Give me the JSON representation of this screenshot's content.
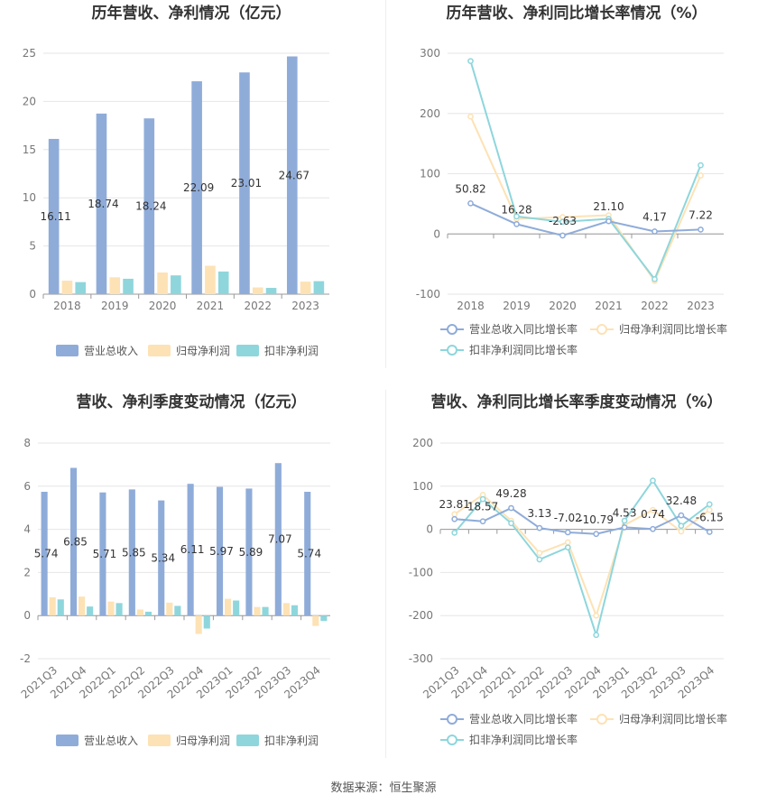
{
  "footer": {
    "source": "数据来源：恒生聚源"
  },
  "colors": {
    "revenue": "#8facd9",
    "net_profit": "#fde2b5",
    "deducted_profit": "#8ed6dc",
    "grid": "#e6e6e6",
    "axis": "#999999"
  },
  "chart_data": [
    {
      "id": "annual-bar",
      "type": "bar",
      "title": "历年营收、净利情况（亿元）",
      "categories": [
        "2018",
        "2019",
        "2020",
        "2021",
        "2022",
        "2023"
      ],
      "ylim": [
        0,
        25
      ],
      "yticks": [
        "0",
        "5",
        "10",
        "15",
        "20",
        "25"
      ],
      "grid": true,
      "legend_position": "bottom",
      "series": [
        {
          "name": "营业总收入",
          "values": [
            16.11,
            18.74,
            18.24,
            22.09,
            23.01,
            24.67
          ],
          "labels": [
            "16.11",
            "18.74",
            "18.24",
            "22.09",
            "23.01",
            "24.67"
          ]
        },
        {
          "name": "归母净利润",
          "values": [
            1.4,
            1.75,
            2.25,
            2.95,
            0.7,
            1.3
          ]
        },
        {
          "name": "扣非净利润",
          "values": [
            1.25,
            1.6,
            1.95,
            2.35,
            0.65,
            1.35
          ]
        }
      ]
    },
    {
      "id": "annual-line",
      "type": "line",
      "title": "历年营收、净利同比增长率情况（%）",
      "categories": [
        "2018",
        "2019",
        "2020",
        "2021",
        "2022",
        "2023"
      ],
      "ylim": [
        -100,
        300
      ],
      "yticks": [
        "-100",
        "0",
        "100",
        "200",
        "300"
      ],
      "grid": true,
      "legend_position": "bottom",
      "series": [
        {
          "name": "营业总收入同比增长率",
          "values": [
            50.82,
            16.28,
            -2.63,
            21.1,
            4.17,
            7.22
          ],
          "labels": [
            "50.82",
            "16.28",
            "-2.63",
            "21.10",
            "4.17",
            "7.22"
          ]
        },
        {
          "name": "归母净利润同比增长率",
          "values": [
            195,
            25,
            28,
            31,
            -78,
            97
          ]
        },
        {
          "name": "扣非净利润同比增长率",
          "values": [
            287,
            29,
            20,
            25,
            -75,
            114
          ]
        }
      ]
    },
    {
      "id": "quarter-bar",
      "type": "bar",
      "title": "营收、净利季度变动情况（亿元）",
      "categories": [
        "2021Q3",
        "2021Q4",
        "2022Q1",
        "2022Q2",
        "2022Q3",
        "2022Q4",
        "2023Q1",
        "2023Q2",
        "2023Q3",
        "2023Q4"
      ],
      "ylim": [
        -2,
        8
      ],
      "yticks": [
        "-2",
        "0",
        "2",
        "4",
        "6",
        "8"
      ],
      "grid": true,
      "legend_position": "bottom",
      "series": [
        {
          "name": "营业总收入",
          "values": [
            5.74,
            6.85,
            5.71,
            5.85,
            5.34,
            6.11,
            5.97,
            5.89,
            7.07,
            5.74
          ],
          "labels": [
            "5.74",
            "6.85",
            "5.71",
            "5.85",
            "5.34",
            "6.11",
            "5.97",
            "5.89",
            "7.07",
            "5.74"
          ]
        },
        {
          "name": "归母净利润",
          "values": [
            0.85,
            0.88,
            0.65,
            0.28,
            0.6,
            -0.85,
            0.78,
            0.4,
            0.58,
            -0.48
          ]
        },
        {
          "name": "扣非净利润",
          "values": [
            0.75,
            0.42,
            0.58,
            0.18,
            0.45,
            -0.6,
            0.7,
            0.4,
            0.48,
            -0.25
          ]
        }
      ]
    },
    {
      "id": "quarter-line",
      "type": "line",
      "title": "营收、净利同比增长率季度变动情况（%）",
      "categories": [
        "2021Q3",
        "2021Q4",
        "2022Q1",
        "2022Q2",
        "2022Q3",
        "2022Q4",
        "2023Q1",
        "2023Q2",
        "2023Q3",
        "2023Q4"
      ],
      "ylim": [
        -300,
        200
      ],
      "yticks": [
        "-300",
        "-200",
        "-100",
        "0",
        "100",
        "200"
      ],
      "grid": true,
      "legend_position": "bottom",
      "series": [
        {
          "name": "营业总收入同比增长率",
          "values": [
            23.81,
            18.57,
            49.28,
            3.13,
            -7.02,
            -10.79,
            4.53,
            0.74,
            32.48,
            -6.15
          ],
          "labels": [
            "23.81",
            "18.57",
            "49.28",
            "3.13",
            "-7.02",
            "-10.79",
            "4.53",
            "0.74",
            "32.48",
            "-6.15"
          ]
        },
        {
          "name": "归母净利润同比增长率",
          "values": [
            35,
            80,
            20,
            -55,
            -30,
            -200,
            10,
            45,
            -5,
            45
          ]
        },
        {
          "name": "扣非净利润同比增长率",
          "values": [
            -8,
            70,
            14,
            -70,
            -42,
            -245,
            20,
            113,
            8,
            58
          ]
        }
      ]
    }
  ]
}
